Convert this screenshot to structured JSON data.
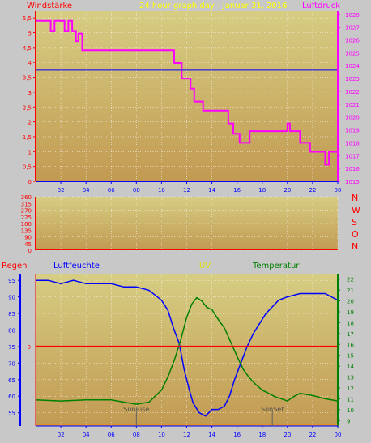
{
  "header": {
    "left_title": "Windstärke",
    "center_title": "24 hour graph day - Januar 31, 2016",
    "right_title": "Luftdruck"
  },
  "colors": {
    "background": "#c8c8c8",
    "plot_top": "#d6cd83",
    "plot_bottom": "#c29a52",
    "wind_label": "#ff0000",
    "pressure": "#ff00ff",
    "title": "#ffff00",
    "blue": "#0000ff",
    "red": "#ff0000",
    "green": "#008000",
    "uv": "#e0e000",
    "grid": "#ffffff"
  },
  "chart_data": [
    {
      "id": "wind_pressure",
      "type": "line",
      "x_ticks": [
        "02",
        "04",
        "06",
        "08",
        "10",
        "12",
        "14",
        "16",
        "18",
        "20",
        "22",
        "00"
      ],
      "xlim": [
        0,
        24
      ],
      "left_axis": {
        "label": "Windstärke",
        "ticks": [
          "0",
          "0,5",
          "1",
          "1,5",
          "2",
          "2,5",
          "3",
          "3,5",
          "4",
          "4,5",
          "5",
          "5,5"
        ],
        "ylim": [
          0,
          5.75
        ]
      },
      "right_axis": {
        "label": "Luftdruck",
        "ticks": [
          "1015",
          "1016",
          "1017",
          "1018",
          "1019",
          "1020",
          "1021",
          "1022",
          "1023",
          "1024",
          "1025",
          "1026",
          "1027",
          "1028"
        ],
        "ylim": [
          1015,
          1028.3
        ]
      },
      "series": [
        {
          "name": "Luftdruck",
          "axis": "right",
          "color": "#ff00ff",
          "points": [
            [
              0,
              1027.5
            ],
            [
              1.2,
              1027.5
            ],
            [
              1.2,
              1026.7
            ],
            [
              1.5,
              1026.7
            ],
            [
              1.5,
              1027.5
            ],
            [
              2.3,
              1027.5
            ],
            [
              2.3,
              1026.7
            ],
            [
              2.6,
              1026.7
            ],
            [
              2.6,
              1027.5
            ],
            [
              2.9,
              1027.5
            ],
            [
              2.9,
              1026.7
            ],
            [
              3.2,
              1026.7
            ],
            [
              3.2,
              1025.9
            ],
            [
              3.4,
              1025.9
            ],
            [
              3.4,
              1026.5
            ],
            [
              3.7,
              1026.5
            ],
            [
              3.7,
              1025.2
            ],
            [
              11.0,
              1025.2
            ],
            [
              11.0,
              1024.2
            ],
            [
              11.6,
              1024.2
            ],
            [
              11.6,
              1023.0
            ],
            [
              12.3,
              1023.0
            ],
            [
              12.3,
              1022.2
            ],
            [
              12.6,
              1022.2
            ],
            [
              12.6,
              1021.2
            ],
            [
              13.3,
              1021.2
            ],
            [
              13.3,
              1020.5
            ],
            [
              15.3,
              1020.5
            ],
            [
              15.3,
              1019.5
            ],
            [
              15.7,
              1019.5
            ],
            [
              15.7,
              1018.7
            ],
            [
              16.2,
              1018.7
            ],
            [
              16.2,
              1018.0
            ],
            [
              17.0,
              1018.0
            ],
            [
              17.0,
              1018.9
            ],
            [
              20.0,
              1018.9
            ],
            [
              20.0,
              1019.5
            ],
            [
              20.2,
              1019.5
            ],
            [
              20.2,
              1018.9
            ],
            [
              21.0,
              1018.9
            ],
            [
              21.0,
              1018.0
            ],
            [
              21.8,
              1018.0
            ],
            [
              21.8,
              1017.3
            ],
            [
              23.0,
              1017.3
            ],
            [
              23.0,
              1016.3
            ],
            [
              23.3,
              1016.3
            ],
            [
              23.3,
              1017.3
            ],
            [
              24,
              1017.3
            ]
          ]
        },
        {
          "name": "Windstärke",
          "axis": "left",
          "color": "#0000ff",
          "points": [
            [
              0,
              3.75
            ],
            [
              24,
              3.75
            ]
          ]
        }
      ]
    },
    {
      "id": "wind_direction",
      "type": "line",
      "xlim": [
        0,
        24
      ],
      "left_axis": {
        "ticks": [
          "0",
          "45",
          "90",
          "135",
          "180",
          "225",
          "270",
          "315",
          "360"
        ],
        "ylim": [
          0,
          360
        ]
      },
      "right_labels": [
        "N",
        "W",
        "S",
        "O",
        "N"
      ],
      "series": [
        {
          "axis": "left",
          "color": "#ff0000",
          "points": [
            [
              0,
              0
            ],
            [
              24,
              0
            ]
          ]
        }
      ]
    },
    {
      "id": "humidity_temperature",
      "type": "line",
      "x_ticks": [
        "02",
        "04",
        "06",
        "08",
        "10",
        "12",
        "14",
        "16",
        "18",
        "20",
        "22",
        "00"
      ],
      "xlim": [
        0,
        24
      ],
      "labels": {
        "rain": "Regen",
        "humidity": "Luftfeuchte",
        "uv": "UV",
        "temperature": "Temperatur"
      },
      "left_axis": {
        "ticks": [
          "55",
          "60",
          "65",
          "70",
          "75",
          "80",
          "85",
          "90",
          "95"
        ],
        "ylim": [
          51,
          97
        ]
      },
      "rain_axis": {
        "ticks": [
          "0"
        ],
        "value": 0
      },
      "right_axis": {
        "ticks": [
          "9",
          "10",
          "11",
          "12",
          "13",
          "14",
          "15",
          "16",
          "17",
          "18",
          "19",
          "20",
          "21",
          "22"
        ],
        "ylim": [
          8.5,
          22.5
        ]
      },
      "annotations": [
        {
          "text": "SunRise",
          "x": 8.0
        },
        {
          "text": "SunSet",
          "x": 18.8
        }
      ],
      "series": [
        {
          "name": "Luftfeuchte",
          "axis": "left",
          "color": "#0000ff",
          "points": [
            [
              0,
              95
            ],
            [
              1,
              95
            ],
            [
              2,
              94
            ],
            [
              3,
              95
            ],
            [
              4,
              94
            ],
            [
              5,
              94
            ],
            [
              6,
              94
            ],
            [
              7,
              93
            ],
            [
              8,
              93
            ],
            [
              9,
              92
            ],
            [
              10,
              89
            ],
            [
              10.5,
              86
            ],
            [
              11.0,
              80
            ],
            [
              11.4,
              76
            ],
            [
              11.8,
              68
            ],
            [
              12.2,
              62
            ],
            [
              12.5,
              58
            ],
            [
              13.0,
              55
            ],
            [
              13.5,
              54
            ],
            [
              14.0,
              56
            ],
            [
              14.5,
              56
            ],
            [
              15.0,
              57
            ],
            [
              15.4,
              60
            ],
            [
              15.8,
              65
            ],
            [
              16.3,
              70
            ],
            [
              16.8,
              75
            ],
            [
              17.3,
              79
            ],
            [
              17.8,
              82
            ],
            [
              18.3,
              85
            ],
            [
              18.8,
              87
            ],
            [
              19.3,
              89
            ],
            [
              20.0,
              90
            ],
            [
              21.0,
              91
            ],
            [
              22.0,
              91
            ],
            [
              23.0,
              91
            ],
            [
              23.5,
              90
            ],
            [
              24,
              89
            ]
          ]
        },
        {
          "name": "Temperatur",
          "axis": "right",
          "color": "#008000",
          "points": [
            [
              0,
              10.9
            ],
            [
              2,
              10.8
            ],
            [
              4,
              10.9
            ],
            [
              6,
              10.9
            ],
            [
              7,
              10.7
            ],
            [
              8,
              10.5
            ],
            [
              9,
              10.7
            ],
            [
              10,
              11.8
            ],
            [
              10.5,
              13.0
            ],
            [
              11.0,
              14.5
            ],
            [
              11.5,
              16.3
            ],
            [
              12.0,
              18.5
            ],
            [
              12.4,
              19.7
            ],
            [
              12.8,
              20.3
            ],
            [
              13.2,
              20.0
            ],
            [
              13.6,
              19.4
            ],
            [
              14.0,
              19.2
            ],
            [
              14.5,
              18.3
            ],
            [
              15.0,
              17.5
            ],
            [
              15.5,
              16.2
            ],
            [
              16.0,
              14.9
            ],
            [
              16.5,
              13.7
            ],
            [
              17.0,
              12.9
            ],
            [
              17.5,
              12.3
            ],
            [
              18.0,
              11.8
            ],
            [
              19.0,
              11.2
            ],
            [
              20.0,
              10.8
            ],
            [
              20.5,
              11.2
            ],
            [
              21.0,
              11.5
            ],
            [
              22.0,
              11.3
            ],
            [
              23.0,
              11.0
            ],
            [
              24,
              10.8
            ]
          ]
        },
        {
          "name": "Regen",
          "axis": "rain",
          "color": "#ff0000",
          "points": [
            [
              0,
              0
            ],
            [
              24,
              0
            ]
          ]
        }
      ]
    }
  ]
}
